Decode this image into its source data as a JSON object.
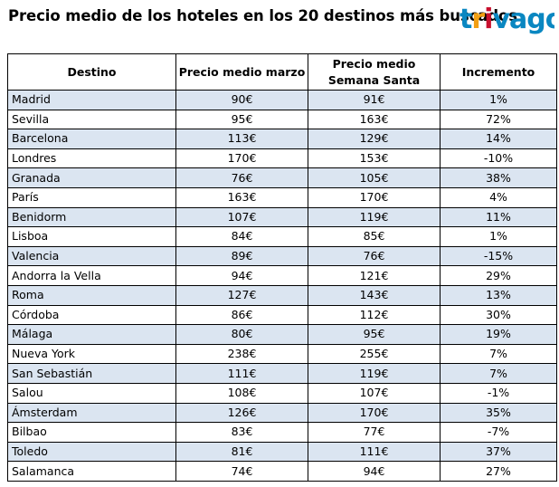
{
  "title": "Precio medio de los hoteles en los 20 destinos más buscados",
  "brand": {
    "logo_text": "trivago",
    "colors": {
      "t": "#0a87c1",
      "r": "#f29f13",
      "i": "#c8102e",
      "vago": "#0a87c1"
    }
  },
  "chart_data": {
    "type": "table",
    "title": "Precio medio de los hoteles en los 20 destinos más buscados",
    "columns": [
      "Destino",
      "Precio medio marzo",
      "Precio medio Semana Santa",
      "Incremento"
    ],
    "rows": [
      [
        "Madrid",
        "90€",
        "91€",
        "1%"
      ],
      [
        "Sevilla",
        "95€",
        "163€",
        "72%"
      ],
      [
        "Barcelona",
        "113€",
        "129€",
        "14%"
      ],
      [
        "Londres",
        "170€",
        "153€",
        "-10%"
      ],
      [
        "Granada",
        "76€",
        "105€",
        "38%"
      ],
      [
        "París",
        "163€",
        "170€",
        "4%"
      ],
      [
        "Benidorm",
        "107€",
        "119€",
        "11%"
      ],
      [
        "Lisboa",
        "84€",
        "85€",
        "1%"
      ],
      [
        "Valencia",
        "89€",
        "76€",
        "-15%"
      ],
      [
        "Andorra la Vella",
        "94€",
        "121€",
        "29%"
      ],
      [
        "Roma",
        "127€",
        "143€",
        "13%"
      ],
      [
        "Córdoba",
        "86€",
        "112€",
        "30%"
      ],
      [
        "Málaga",
        "80€",
        "95€",
        "19%"
      ],
      [
        "Nueva York",
        "238€",
        "255€",
        "7%"
      ],
      [
        "San Sebastián",
        "111€",
        "119€",
        "7%"
      ],
      [
        "Salou",
        "108€",
        "107€",
        "-1%"
      ],
      [
        "Ámsterdam",
        "126€",
        "170€",
        "35%"
      ],
      [
        "Bilbao",
        "83€",
        "77€",
        "-7%"
      ],
      [
        "Toledo",
        "81€",
        "111€",
        "37%"
      ],
      [
        "Salamanca",
        "74€",
        "94€",
        "27%"
      ]
    ],
    "row_shading": {
      "odd": "#dbe5f1",
      "even": "#ffffff"
    }
  }
}
